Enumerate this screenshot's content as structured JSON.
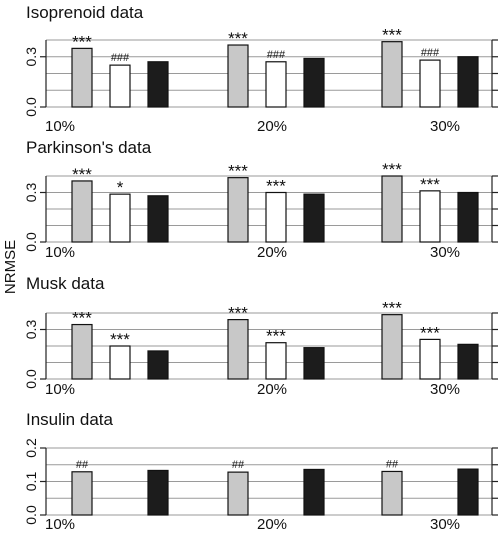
{
  "chart_data": [
    {
      "type": "bar",
      "title": "Isoprenoid data",
      "categories": [
        "10%",
        "20%",
        "30%"
      ],
      "ylim": [
        0,
        0.4
      ],
      "yticks": [
        "0.0",
        "0.3"
      ],
      "series": [
        {
          "color": "#c8c8c8",
          "values": [
            0.35,
            0.37,
            0.39
          ],
          "annotations": [
            "***",
            "***",
            "***"
          ]
        },
        {
          "color": "#ffffff",
          "values": [
            0.25,
            0.27,
            0.28
          ],
          "annotations": [
            "###",
            "###",
            "###"
          ]
        },
        {
          "color": "#1c1c1c",
          "values": [
            0.27,
            0.29,
            0.3
          ],
          "annotations": [
            "",
            "",
            ""
          ]
        }
      ]
    },
    {
      "type": "bar",
      "title": "Parkinson's data",
      "categories": [
        "10%",
        "20%",
        "30%"
      ],
      "ylim": [
        0,
        0.4
      ],
      "yticks": [
        "0.0",
        "0.3"
      ],
      "series": [
        {
          "color": "#c8c8c8",
          "values": [
            0.37,
            0.39,
            0.4
          ],
          "annotations": [
            "***",
            "***",
            "***"
          ]
        },
        {
          "color": "#ffffff",
          "values": [
            0.29,
            0.3,
            0.31
          ],
          "annotations": [
            "*",
            "***",
            "***"
          ]
        },
        {
          "color": "#1c1c1c",
          "values": [
            0.28,
            0.29,
            0.3
          ],
          "annotations": [
            "",
            "",
            ""
          ]
        }
      ]
    },
    {
      "type": "bar",
      "title": "Musk data",
      "categories": [
        "10%",
        "20%",
        "30%"
      ],
      "ylim": [
        0,
        0.4
      ],
      "yticks": [
        "0.0",
        "0.3"
      ],
      "series": [
        {
          "color": "#c8c8c8",
          "values": [
            0.33,
            0.36,
            0.39
          ],
          "annotations": [
            "***",
            "***",
            "***"
          ]
        },
        {
          "color": "#ffffff",
          "values": [
            0.2,
            0.22,
            0.24
          ],
          "annotations": [
            "***",
            "***",
            "***"
          ]
        },
        {
          "color": "#1c1c1c",
          "values": [
            0.17,
            0.19,
            0.21
          ],
          "annotations": [
            "",
            "",
            ""
          ]
        }
      ]
    },
    {
      "type": "bar",
      "title": "Insulin data",
      "categories": [
        "10%",
        "20%",
        "30%"
      ],
      "ylim": [
        0,
        0.2
      ],
      "yticks": [
        "0.0",
        "0.1",
        "0.2"
      ],
      "series": [
        {
          "color": "#c8c8c8",
          "values": [
            0.129,
            0.128,
            0.13
          ],
          "annotations": [
            "##",
            "##",
            "##"
          ]
        },
        {
          "color": "#ffffff",
          "values": [
            0.0,
            0.0,
            0.0
          ],
          "annotations": [
            "",
            "",
            ""
          ]
        },
        {
          "color": "#1c1c1c",
          "values": [
            0.133,
            0.136,
            0.137
          ],
          "annotations": [
            "",
            "",
            ""
          ]
        }
      ]
    }
  ],
  "ylabel": "NRMSE"
}
